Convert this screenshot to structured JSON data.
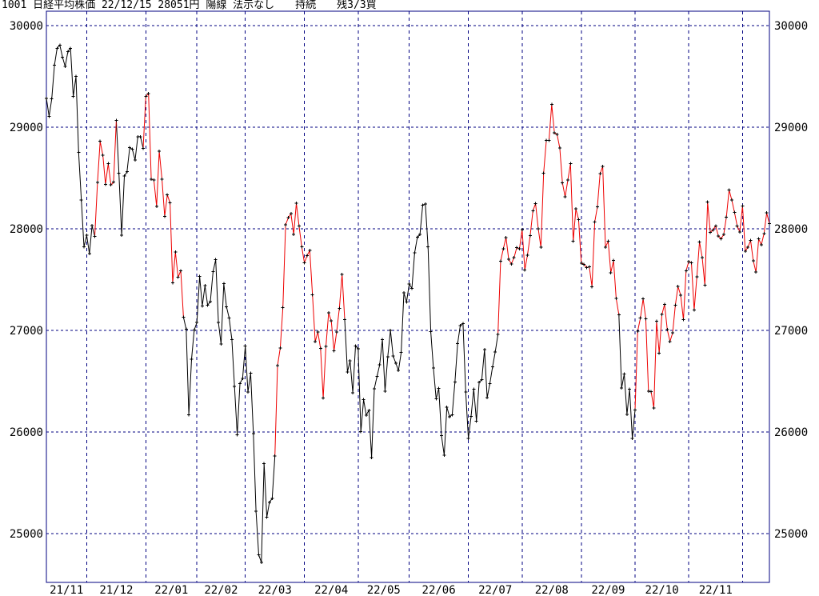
{
  "header": {
    "line": "1001 日経平均株価 22/12/15 28051円 陽線 法示なし　　持続　　残3/3買"
  },
  "chart_data": {
    "type": "line",
    "title": "日経平均株価 (Nikkei 225) daily close line chart",
    "instrument_code": "1001",
    "instrument_name": "日経平均株価",
    "quote_date": "22/12/15",
    "quote_price": "28051円",
    "status_labels": [
      "陽線",
      "法示なし",
      "持続",
      "残3/3買"
    ],
    "grid": true,
    "legend": false,
    "ylim": [
      24640,
      30140
    ],
    "y_ticks": [
      30000,
      29000,
      28000,
      27000,
      26000,
      25000
    ],
    "x_labels": [
      "21/11",
      "21/12",
      "22/01",
      "22/02",
      "22/03",
      "22/04",
      "22/05",
      "22/06",
      "22/07",
      "22/08",
      "22/09",
      "22/10",
      "22/11"
    ],
    "month_boundaries_days": [
      15,
      37,
      56,
      74,
      96,
      116,
      135,
      157,
      177,
      199,
      219,
      239,
      259
    ],
    "values": [
      29285,
      29107,
      29278,
      29610,
      29777,
      29808,
      29688,
      29598,
      29746,
      29775,
      29303,
      29499,
      28752,
      28284,
      27822,
      27936,
      27754,
      28030,
      27927,
      28456,
      28861,
      28725,
      28438,
      28641,
      28432,
      28460,
      29066,
      28546,
      27937,
      28518,
      28562,
      28799,
      28783,
      28676,
      28906,
      28907,
      28792,
      29302,
      29332,
      28488,
      28479,
      28222,
      28765,
      28489,
      28124,
      28333,
      28257,
      27467,
      27772,
      27522,
      27588,
      27131,
      27011,
      26170,
      26717,
      27002,
      27078,
      27533,
      27241,
      27439,
      27248,
      27284,
      27579,
      27696,
      27079,
      26865,
      27460,
      27232,
      27122,
      26910,
      26449,
      25971,
      26477,
      26527,
      26845,
      26393,
      26577,
      25985,
      25221,
      24790,
      24718,
      25690,
      25162,
      25308,
      25346,
      25762,
      26652,
      26827,
      27224,
      28040,
      28110,
      28150,
      27944,
      28252,
      28027,
      27821,
      27665,
      27737,
      27787,
      27350,
      26888,
      26986,
      26821,
      26335,
      26843,
      27172,
      27093,
      26799,
      26985,
      27217,
      27553,
      27105,
      26591,
      26700,
      26386,
      26847,
      26818,
      26003,
      26319,
      26167,
      26213,
      25749,
      26427,
      26547,
      26660,
      26911,
      26403,
      26739,
      27001,
      26748,
      26677,
      26605,
      26782,
      27369,
      27280,
      27457,
      27414,
      27762,
      27916,
      27944,
      28234,
      28246,
      27824,
      26987,
      26630,
      26326,
      26431,
      25963,
      25771,
      26246,
      26150,
      26171,
      26492,
      26871,
      27049,
      27067,
      26393,
      25936,
      26154,
      26423,
      26108,
      26490,
      26517,
      26812,
      26337,
      26478,
      26643,
      26788,
      26961,
      27680,
      27803,
      27915,
      27699,
      27655,
      27716,
      27815,
      27802,
      27993,
      27595,
      27742,
      27932,
      28176,
      28249,
      27999,
      27819,
      28547,
      28872,
      28869,
      29223,
      28943,
      28930,
      28795,
      28453,
      28313,
      28480,
      28641,
      27879,
      28195,
      28092,
      27661,
      27651,
      27620,
      27626,
      27430,
      28066,
      28215,
      28543,
      28615,
      27819,
      27876,
      27568,
      27688,
      27314,
      27154,
      26432,
      26572,
      26174,
      26422,
      25937,
      26216,
      26993,
      27121,
      27311,
      27116,
      26401,
      26397,
      26237,
      27091,
      26776,
      27156,
      27257,
      27007,
      26891,
      26975,
      27250,
      27432,
      27346,
      27105,
      27587,
      27679,
      27664,
      27200,
      27528,
      27872,
      27716,
      27446,
      28263,
      27963,
      27990,
      28029,
      27931,
      27900,
      27945,
      28116,
      28383,
      28283,
      28163,
      28028,
      27969,
      28226,
      27778,
      27820,
      27886,
      27686,
      27574,
      27901,
      27842,
      27954,
      28156,
      28051
    ],
    "red_ranges": [
      [
        19,
        26
      ],
      [
        37,
        51
      ],
      [
        86,
        111
      ],
      [
        169,
        213
      ],
      [
        220,
        269
      ]
    ],
    "colors": {
      "line": "#000000",
      "signal": "#ee0000",
      "grid": "#000080",
      "marker": "#000000",
      "background": "#ffffff"
    }
  }
}
